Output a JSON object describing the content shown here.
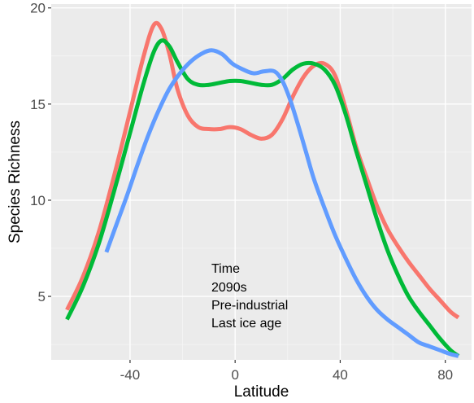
{
  "chart_data": {
    "type": "line",
    "xlabel": "Latitude",
    "ylabel": "Species Richness",
    "xlim": [
      -70,
      90
    ],
    "ylim": [
      1.7,
      20.2
    ],
    "x_ticks": [
      -40,
      0,
      40,
      80
    ],
    "y_ticks": [
      5,
      10,
      15,
      20
    ],
    "x_tick_labels": [
      "-40",
      "0",
      "40",
      "80"
    ],
    "y_tick_labels": [
      "5",
      "10",
      "15",
      "20"
    ],
    "grid": true,
    "panel_background": "#ebebeb",
    "legend": {
      "title": "Time",
      "placement": "inside-bottom-center",
      "entries": [
        "2090s",
        "Pre-industrial",
        "Last ice age"
      ]
    },
    "series": [
      {
        "name": "2090s",
        "color": "#f8766d",
        "x": [
          -64,
          -58,
          -52,
          -46,
          -40,
          -35,
          -31,
          -28,
          -25,
          -22,
          -18,
          -14,
          -10,
          -6,
          -2,
          2,
          6,
          10,
          14,
          18,
          22,
          26,
          30,
          34,
          38,
          42,
          46,
          50,
          54,
          58,
          62,
          66,
          70,
          74,
          78,
          82,
          85
        ],
        "y": [
          4.3,
          6.0,
          8.3,
          11.3,
          14.6,
          17.4,
          19.1,
          18.9,
          17.6,
          15.8,
          14.4,
          13.8,
          13.7,
          13.7,
          13.8,
          13.7,
          13.4,
          13.2,
          13.4,
          14.2,
          15.4,
          16.4,
          17.0,
          17.1,
          16.5,
          14.8,
          12.8,
          11.2,
          9.7,
          8.5,
          7.6,
          6.8,
          6.1,
          5.4,
          4.8,
          4.2,
          3.9
        ]
      },
      {
        "name": "Pre-industrial",
        "color": "#00ba38",
        "x": [
          -64,
          -58,
          -52,
          -46,
          -40,
          -35,
          -31,
          -28,
          -25,
          -22,
          -18,
          -14,
          -10,
          -6,
          -2,
          2,
          6,
          10,
          14,
          18,
          22,
          26,
          30,
          34,
          38,
          42,
          46,
          50,
          54,
          58,
          62,
          66,
          70,
          74,
          78,
          82,
          85
        ],
        "y": [
          3.8,
          5.5,
          7.7,
          10.5,
          13.5,
          16.0,
          17.7,
          18.3,
          18.0,
          17.2,
          16.3,
          16.0,
          16.0,
          16.1,
          16.2,
          16.2,
          16.1,
          16.0,
          16.0,
          16.3,
          16.8,
          17.1,
          17.1,
          16.8,
          16.0,
          14.5,
          12.6,
          10.8,
          9.0,
          7.4,
          6.1,
          5.0,
          4.2,
          3.5,
          2.8,
          2.2,
          1.9
        ]
      },
      {
        "name": "Last ice age",
        "color": "#619cff",
        "x": [
          -49,
          -45,
          -41,
          -37,
          -33,
          -29,
          -25,
          -21,
          -17,
          -13,
          -9,
          -5,
          -1,
          3,
          7,
          11,
          15,
          18,
          21,
          24,
          27,
          30,
          34,
          38,
          42,
          46,
          50,
          54,
          58,
          62,
          66,
          70,
          74,
          78,
          82,
          85
        ],
        "y": [
          7.3,
          8.8,
          10.3,
          11.9,
          13.4,
          14.7,
          15.8,
          16.6,
          17.2,
          17.6,
          17.8,
          17.6,
          17.1,
          16.8,
          16.6,
          16.7,
          16.7,
          16.2,
          15.2,
          13.9,
          12.5,
          11.1,
          9.6,
          8.2,
          7.0,
          5.9,
          5.0,
          4.3,
          3.8,
          3.4,
          3.0,
          2.6,
          2.4,
          2.2,
          2.0,
          1.9
        ]
      }
    ]
  }
}
